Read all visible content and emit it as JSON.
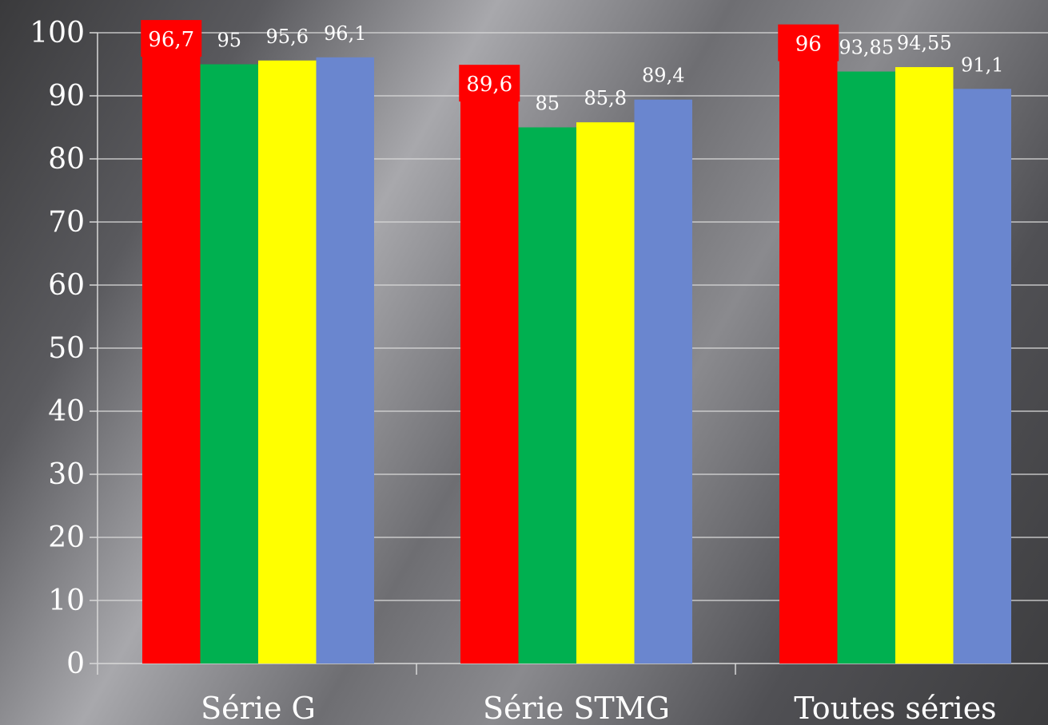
{
  "chart_data": {
    "type": "bar",
    "categories": [
      "Série G",
      "Série STMG",
      "Toutes séries"
    ],
    "series": [
      {
        "color": "#ff0000",
        "highlight_label": true,
        "values": [
          96.7,
          89.6,
          96
        ],
        "labels": [
          "96,7",
          "89,6",
          "96"
        ]
      },
      {
        "color": "#00b050",
        "highlight_label": false,
        "values": [
          95,
          85,
          93.85
        ],
        "labels": [
          "95",
          "85",
          "93,85"
        ]
      },
      {
        "color": "#ffff00",
        "highlight_label": false,
        "values": [
          95.6,
          85.8,
          94.55
        ],
        "labels": [
          "95,6",
          "85,8",
          "94,55"
        ]
      },
      {
        "color": "#6a86cf",
        "highlight_label": false,
        "values": [
          96.1,
          89.4,
          91.1
        ],
        "labels": [
          "96,1",
          "89,4",
          "91,1"
        ]
      }
    ],
    "yticks": [
      "0",
      "10",
      "20",
      "30",
      "40",
      "50",
      "60",
      "70",
      "80",
      "90",
      "100"
    ],
    "ylim": [
      0,
      100
    ],
    "grid": true,
    "legend": "none",
    "title": "",
    "xlabel": "",
    "ylabel": ""
  }
}
